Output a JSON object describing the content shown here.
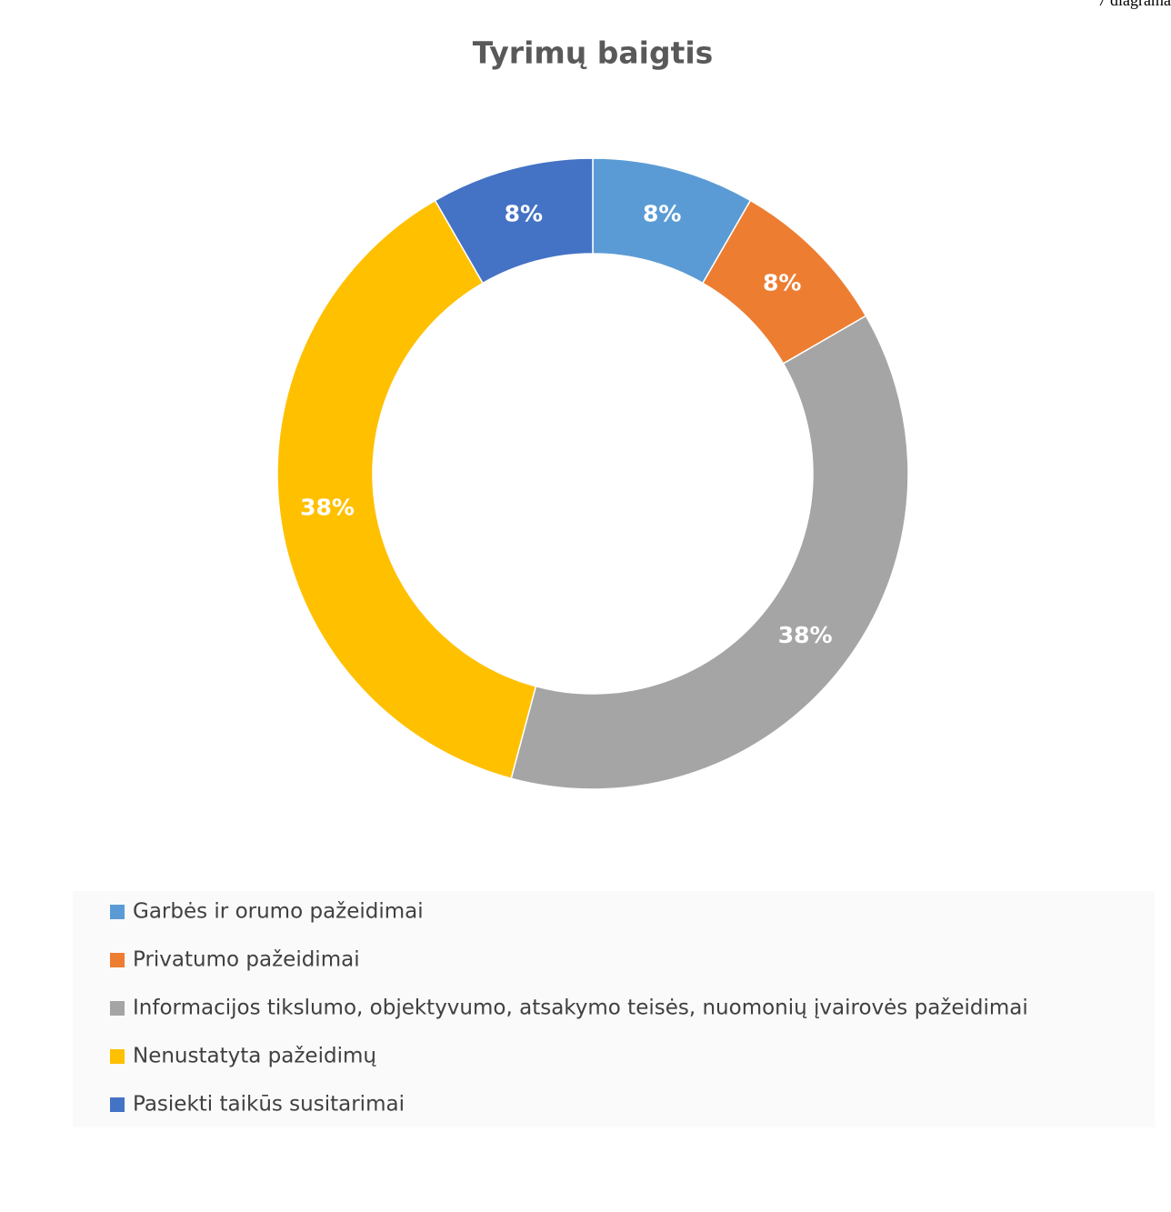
{
  "chart_data": {
    "type": "donut",
    "corner_note": "7 diagrama",
    "title": "Tyrimų baigtis",
    "categories": [
      "Garbės ir orumo pažeidimai",
      "Privatumo pažeidimai",
      "Informacijos tikslumo, objektyvumo, atsakymo teisės, nuomonių įvairovės pažeidimai",
      "Nenustatyta pažeidimų",
      "Pasiekti taikūs susitarimai"
    ],
    "values": [
      8.33,
      8.33,
      37.5,
      37.5,
      8.33
    ],
    "value_labels": [
      "8%",
      "8%",
      "38%",
      "38%",
      "8%"
    ],
    "colors": [
      "#5b9bd5",
      "#ed7d31",
      "#a5a5a5",
      "#ffc000",
      "#4472c4"
    ],
    "legend": "bottom"
  }
}
